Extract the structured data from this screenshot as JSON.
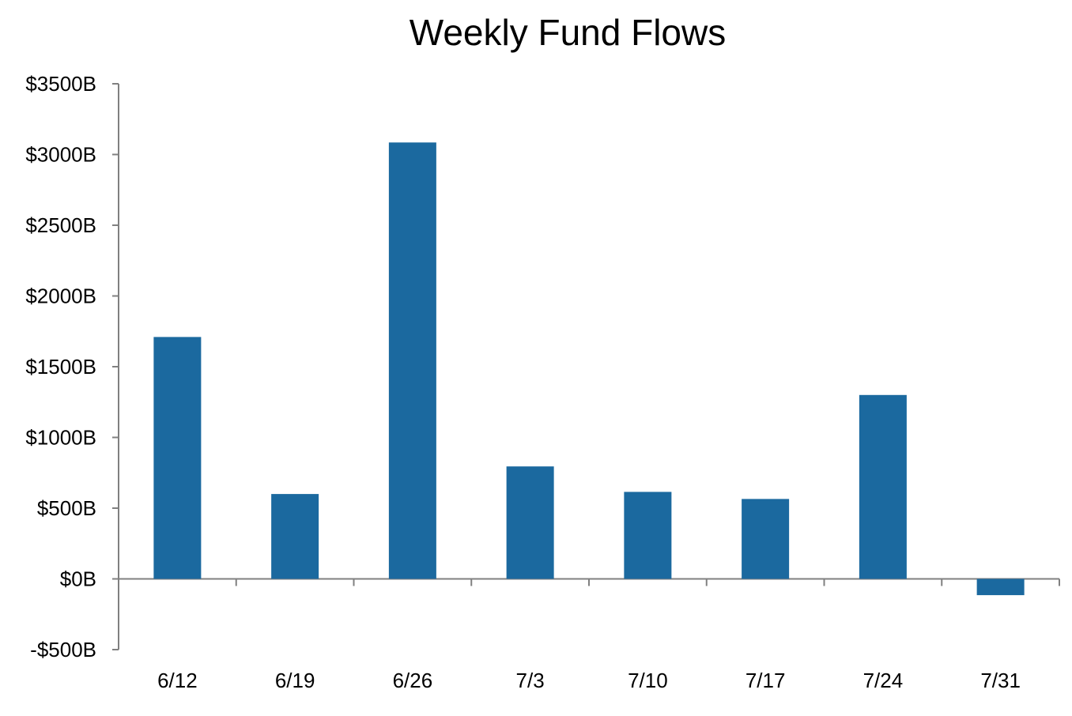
{
  "chart_data": {
    "type": "bar",
    "title": "Weekly Fund Flows",
    "xlabel": "",
    "ylabel": "",
    "categories": [
      "6/12",
      "6/19",
      "6/26",
      "7/3",
      "7/10",
      "7/17",
      "7/24",
      "7/31"
    ],
    "values": [
      1710,
      600,
      3085,
      795,
      615,
      565,
      1300,
      -115
    ],
    "ylim": [
      -500,
      3500
    ],
    "yticks": [
      -500,
      0,
      500,
      1000,
      1500,
      2000,
      2500,
      3000,
      3500
    ],
    "ytick_labels": [
      "-$500B",
      "$0B",
      "$500B",
      "$1000B",
      "$1500B",
      "$2000B",
      "$2500B",
      "$3000B",
      "$3500B"
    ],
    "grid": false,
    "legend": "none",
    "colors": {
      "bar": "#1b699f",
      "axis": "#808080",
      "text": "#000000"
    }
  }
}
